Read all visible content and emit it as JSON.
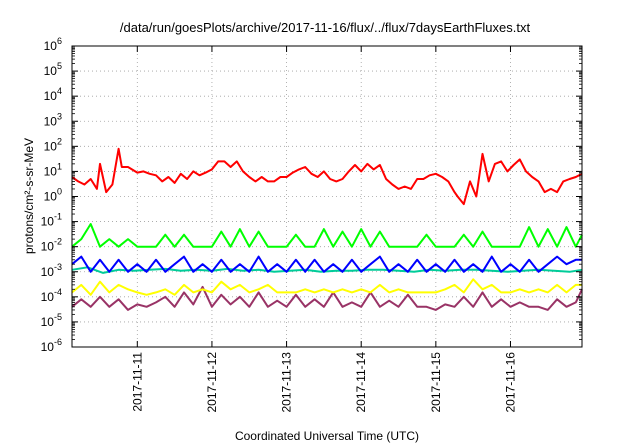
{
  "chart_data": {
    "type": "line",
    "title": "/data/run/goesPlots/archive/2017-11-16/flux/../flux/7daysEarthFluxes.txt",
    "xlabel": "Coordinated Universal Time (UTC)",
    "ylabel": "protons/cm²-s-sr-MeV",
    "y_scale": "log",
    "ylim_exp": [
      -6,
      6
    ],
    "y_ticks": [
      {
        "base": "10",
        "exp": "-6"
      },
      {
        "base": "10",
        "exp": "-5"
      },
      {
        "base": "10",
        "exp": "-4"
      },
      {
        "base": "10",
        "exp": "-3"
      },
      {
        "base": "10",
        "exp": "-2"
      },
      {
        "base": "10",
        "exp": "-1"
      },
      {
        "base": "10",
        "exp": "0"
      },
      {
        "base": "10",
        "exp": "1"
      },
      {
        "base": "10",
        "exp": "2"
      },
      {
        "base": "10",
        "exp": "3"
      },
      {
        "base": "10",
        "exp": "4"
      },
      {
        "base": "10",
        "exp": "5"
      },
      {
        "base": "10",
        "exp": "6"
      }
    ],
    "x_range": [
      "2017-11-10 03:00",
      "2017-11-16 23:00"
    ],
    "x_ticks": [
      "2017-11-11",
      "2017-11-12",
      "2017-11-13",
      "2017-11-14",
      "2017-11-15",
      "2017-11-16"
    ],
    "grid": true,
    "legend": "none",
    "series": [
      {
        "color": "#ff0000",
        "x": [
          "2017-11-10 03:00",
          "2017-11-10 05:00",
          "2017-11-10 07:00",
          "2017-11-10 09:00",
          "2017-11-10 11:00",
          "2017-11-10 12:00",
          "2017-11-10 14:00",
          "2017-11-10 16:00",
          "2017-11-10 18:00",
          "2017-11-10 19:00",
          "2017-11-10 21:00",
          "2017-11-11 00:00",
          "2017-11-11 02:00",
          "2017-11-11 04:00",
          "2017-11-11 06:00",
          "2017-11-11 08:00",
          "2017-11-11 10:00",
          "2017-11-11 12:00",
          "2017-11-11 14:00",
          "2017-11-11 16:00",
          "2017-11-11 18:00",
          "2017-11-11 20:00",
          "2017-11-11 22:00",
          "2017-11-12 00:00",
          "2017-11-12 02:00",
          "2017-11-12 04:00",
          "2017-11-12 06:00",
          "2017-11-12 08:00",
          "2017-11-12 10:00",
          "2017-11-12 12:00",
          "2017-11-12 14:00",
          "2017-11-12 16:00",
          "2017-11-12 18:00",
          "2017-11-12 20:00",
          "2017-11-12 22:00",
          "2017-11-13 00:00",
          "2017-11-13 02:00",
          "2017-11-13 04:00",
          "2017-11-13 06:00",
          "2017-11-13 08:00",
          "2017-11-13 10:00",
          "2017-11-13 12:00",
          "2017-11-13 14:00",
          "2017-11-13 16:00",
          "2017-11-13 18:00",
          "2017-11-13 20:00",
          "2017-11-13 22:00",
          "2017-11-14 00:00",
          "2017-11-14 02:00",
          "2017-11-14 04:00",
          "2017-11-14 06:00",
          "2017-11-14 08:00",
          "2017-11-14 10:00",
          "2017-11-14 12:00",
          "2017-11-14 14:00",
          "2017-11-14 16:00",
          "2017-11-14 18:00",
          "2017-11-14 20:00",
          "2017-11-14 22:00",
          "2017-11-15 00:00",
          "2017-11-15 02:00",
          "2017-11-15 04:00",
          "2017-11-15 06:00",
          "2017-11-15 07:00",
          "2017-11-15 09:00",
          "2017-11-15 11:00",
          "2017-11-15 13:00",
          "2017-11-15 15:00",
          "2017-11-15 17:00",
          "2017-11-15 19:00",
          "2017-11-15 21:00",
          "2017-11-15 23:00",
          "2017-11-16 01:00",
          "2017-11-16 03:00",
          "2017-11-16 05:00",
          "2017-11-16 07:00",
          "2017-11-16 09:00",
          "2017-11-16 11:00",
          "2017-11-16 13:00",
          "2017-11-16 15:00",
          "2017-11-16 17:00",
          "2017-11-16 19:00",
          "2017-11-16 21:00",
          "2017-11-16 23:00"
        ],
        "y": [
          6,
          4,
          3,
          5,
          2,
          20,
          1.5,
          3,
          80,
          15,
          15,
          9,
          10,
          8,
          7,
          4,
          6,
          3.5,
          8,
          5,
          10,
          7,
          9,
          12,
          25,
          25,
          15,
          25,
          10,
          6,
          4,
          6,
          4,
          4,
          6,
          6,
          9,
          12,
          15,
          8,
          6,
          10,
          5,
          4,
          5,
          10,
          18,
          10,
          20,
          12,
          18,
          5,
          3,
          2,
          2.5,
          2,
          5,
          5,
          7,
          8,
          6,
          4,
          1.5,
          1,
          0.5,
          4,
          1,
          50,
          4,
          20,
          25,
          10,
          18,
          30,
          10,
          6,
          4,
          1.5,
          2,
          1.5,
          4,
          5,
          6,
          8
        ]
      },
      {
        "color": "#00ff00",
        "x": [
          "2017-11-10 03:00",
          "2017-11-10 06:00",
          "2017-11-10 09:00",
          "2017-11-10 12:00",
          "2017-11-10 15:00",
          "2017-11-10 18:00",
          "2017-11-10 21:00",
          "2017-11-11 00:00",
          "2017-11-11 03:00",
          "2017-11-11 06:00",
          "2017-11-11 09:00",
          "2017-11-11 12:00",
          "2017-11-11 15:00",
          "2017-11-11 18:00",
          "2017-11-11 21:00",
          "2017-11-12 00:00",
          "2017-11-12 03:00",
          "2017-11-12 06:00",
          "2017-11-12 09:00",
          "2017-11-12 12:00",
          "2017-11-12 15:00",
          "2017-11-12 18:00",
          "2017-11-12 21:00",
          "2017-11-13 00:00",
          "2017-11-13 03:00",
          "2017-11-13 06:00",
          "2017-11-13 09:00",
          "2017-11-13 12:00",
          "2017-11-13 15:00",
          "2017-11-13 18:00",
          "2017-11-13 21:00",
          "2017-11-14 00:00",
          "2017-11-14 03:00",
          "2017-11-14 06:00",
          "2017-11-14 09:00",
          "2017-11-14 12:00",
          "2017-11-14 15:00",
          "2017-11-14 18:00",
          "2017-11-14 21:00",
          "2017-11-15 00:00",
          "2017-11-15 03:00",
          "2017-11-15 06:00",
          "2017-11-15 09:00",
          "2017-11-15 12:00",
          "2017-11-15 15:00",
          "2017-11-15 18:00",
          "2017-11-15 21:00",
          "2017-11-16 00:00",
          "2017-11-16 03:00",
          "2017-11-16 06:00",
          "2017-11-16 09:00",
          "2017-11-16 12:00",
          "2017-11-16 15:00",
          "2017-11-16 18:00",
          "2017-11-16 21:00",
          "2017-11-16 23:00"
        ],
        "y": [
          0.01,
          0.02,
          0.08,
          0.01,
          0.02,
          0.01,
          0.02,
          0.01,
          0.01,
          0.01,
          0.03,
          0.01,
          0.03,
          0.01,
          0.01,
          0.01,
          0.04,
          0.01,
          0.05,
          0.01,
          0.04,
          0.01,
          0.01,
          0.01,
          0.03,
          0.01,
          0.01,
          0.05,
          0.01,
          0.04,
          0.01,
          0.05,
          0.01,
          0.04,
          0.01,
          0.01,
          0.01,
          0.01,
          0.03,
          0.01,
          0.01,
          0.01,
          0.03,
          0.01,
          0.04,
          0.01,
          0.01,
          0.01,
          0.01,
          0.06,
          0.01,
          0.05,
          0.01,
          0.06,
          0.01,
          0.03
        ]
      },
      {
        "color": "#0000ff",
        "x": [
          "2017-11-10 03:00",
          "2017-11-10 06:00",
          "2017-11-10 09:00",
          "2017-11-10 12:00",
          "2017-11-10 15:00",
          "2017-11-10 18:00",
          "2017-11-10 21:00",
          "2017-11-11 00:00",
          "2017-11-11 03:00",
          "2017-11-11 06:00",
          "2017-11-11 09:00",
          "2017-11-11 12:00",
          "2017-11-11 15:00",
          "2017-11-11 18:00",
          "2017-11-11 21:00",
          "2017-11-12 00:00",
          "2017-11-12 03:00",
          "2017-11-12 06:00",
          "2017-11-12 09:00",
          "2017-11-12 12:00",
          "2017-11-12 15:00",
          "2017-11-12 18:00",
          "2017-11-12 21:00",
          "2017-11-13 00:00",
          "2017-11-13 03:00",
          "2017-11-13 06:00",
          "2017-11-13 09:00",
          "2017-11-13 12:00",
          "2017-11-13 15:00",
          "2017-11-13 18:00",
          "2017-11-13 21:00",
          "2017-11-14 00:00",
          "2017-11-14 03:00",
          "2017-11-14 06:00",
          "2017-11-14 09:00",
          "2017-11-14 12:00",
          "2017-11-14 15:00",
          "2017-11-14 18:00",
          "2017-11-14 21:00",
          "2017-11-15 00:00",
          "2017-11-15 03:00",
          "2017-11-15 06:00",
          "2017-11-15 09:00",
          "2017-11-15 12:00",
          "2017-11-15 15:00",
          "2017-11-15 18:00",
          "2017-11-15 21:00",
          "2017-11-16 00:00",
          "2017-11-16 03:00",
          "2017-11-16 06:00",
          "2017-11-16 09:00",
          "2017-11-16 12:00",
          "2017-11-16 15:00",
          "2017-11-16 18:00",
          "2017-11-16 21:00",
          "2017-11-16 23:00"
        ],
        "y": [
          0.002,
          0.004,
          0.001,
          0.003,
          0.001,
          0.003,
          0.001,
          0.002,
          0.001,
          0.003,
          0.001,
          0.002,
          0.004,
          0.001,
          0.002,
          0.001,
          0.003,
          0.001,
          0.002,
          0.001,
          0.004,
          0.001,
          0.002,
          0.001,
          0.003,
          0.001,
          0.003,
          0.001,
          0.002,
          0.001,
          0.003,
          0.001,
          0.002,
          0.004,
          0.001,
          0.002,
          0.001,
          0.003,
          0.001,
          0.002,
          0.001,
          0.003,
          0.001,
          0.002,
          0.001,
          0.004,
          0.001,
          0.002,
          0.001,
          0.003,
          0.001,
          0.002,
          0.004,
          0.002,
          0.003,
          0.003
        ]
      },
      {
        "color": "#00cc99",
        "x": [
          "2017-11-10 03:00",
          "2017-11-10 08:00",
          "2017-11-10 13:00",
          "2017-11-10 18:00",
          "2017-11-10 23:00",
          "2017-11-11 04:00",
          "2017-11-11 09:00",
          "2017-11-11 14:00",
          "2017-11-11 19:00",
          "2017-11-12 00:00",
          "2017-11-12 05:00",
          "2017-11-12 10:00",
          "2017-11-12 15:00",
          "2017-11-12 20:00",
          "2017-11-13 01:00",
          "2017-11-13 06:00",
          "2017-11-13 11:00",
          "2017-11-13 16:00",
          "2017-11-13 21:00",
          "2017-11-14 02:00",
          "2017-11-14 07:00",
          "2017-11-14 12:00",
          "2017-11-14 17:00",
          "2017-11-14 22:00",
          "2017-11-15 03:00",
          "2017-11-15 08:00",
          "2017-11-15 13:00",
          "2017-11-15 18:00",
          "2017-11-15 23:00",
          "2017-11-16 04:00",
          "2017-11-16 09:00",
          "2017-11-16 14:00",
          "2017-11-16 19:00",
          "2017-11-16 23:00"
        ],
        "y": [
          0.0012,
          0.0015,
          0.0009,
          0.0012,
          0.0011,
          0.0012,
          0.0013,
          0.0011,
          0.0012,
          0.0011,
          0.0013,
          0.0011,
          0.0012,
          0.001,
          0.0011,
          0.0012,
          0.001,
          0.0011,
          0.0011,
          0.0012,
          0.0012,
          0.0011,
          0.001,
          0.0012,
          0.0011,
          0.0012,
          0.0012,
          0.0011,
          0.001,
          0.0011,
          0.0012,
          0.0011,
          0.001,
          0.0012
        ]
      },
      {
        "color": "#ffff00",
        "x": [
          "2017-11-10 03:00",
          "2017-11-10 06:00",
          "2017-11-10 09:00",
          "2017-11-10 12:00",
          "2017-11-10 15:00",
          "2017-11-10 18:00",
          "2017-11-10 21:00",
          "2017-11-11 00:00",
          "2017-11-11 03:00",
          "2017-11-11 06:00",
          "2017-11-11 09:00",
          "2017-11-11 12:00",
          "2017-11-11 15:00",
          "2017-11-11 18:00",
          "2017-11-11 21:00",
          "2017-11-12 00:00",
          "2017-11-12 03:00",
          "2017-11-12 06:00",
          "2017-11-12 09:00",
          "2017-11-12 12:00",
          "2017-11-12 15:00",
          "2017-11-12 18:00",
          "2017-11-12 21:00",
          "2017-11-13 00:00",
          "2017-11-13 03:00",
          "2017-11-13 06:00",
          "2017-11-13 09:00",
          "2017-11-13 12:00",
          "2017-11-13 15:00",
          "2017-11-13 18:00",
          "2017-11-13 21:00",
          "2017-11-14 00:00",
          "2017-11-14 03:00",
          "2017-11-14 06:00",
          "2017-11-14 09:00",
          "2017-11-14 12:00",
          "2017-11-14 15:00",
          "2017-11-14 18:00",
          "2017-11-14 21:00",
          "2017-11-15 00:00",
          "2017-11-15 03:00",
          "2017-11-15 06:00",
          "2017-11-15 09:00",
          "2017-11-15 12:00",
          "2017-11-15 15:00",
          "2017-11-15 18:00",
          "2017-11-15 21:00",
          "2017-11-16 00:00",
          "2017-11-16 03:00",
          "2017-11-16 06:00",
          "2017-11-16 09:00",
          "2017-11-16 12:00",
          "2017-11-16 15:00",
          "2017-11-16 18:00",
          "2017-11-16 21:00",
          "2017-11-16 23:00"
        ],
        "y": [
          0.00015,
          0.0003,
          0.00012,
          0.0004,
          0.00015,
          0.0003,
          0.0002,
          0.00015,
          0.00012,
          0.00015,
          0.0002,
          0.00012,
          0.0003,
          0.00015,
          0.0002,
          0.00015,
          0.0004,
          0.0002,
          0.0003,
          0.00015,
          0.0002,
          0.0003,
          0.00015,
          0.00015,
          0.00015,
          0.0002,
          0.00015,
          0.0002,
          0.00015,
          0.0002,
          0.00015,
          0.0002,
          0.00015,
          0.0003,
          0.00015,
          0.0002,
          0.00015,
          0.00015,
          0.00015,
          0.00015,
          0.0002,
          0.0003,
          0.00015,
          0.0005,
          0.0002,
          0.0003,
          0.00015,
          0.00015,
          0.0002,
          0.00015,
          0.0002,
          0.00015,
          0.0003,
          0.00015,
          0.0003,
          0.0003
        ]
      },
      {
        "color": "#993366",
        "x": [
          "2017-11-10 03:00",
          "2017-11-10 06:00",
          "2017-11-10 09:00",
          "2017-11-10 12:00",
          "2017-11-10 15:00",
          "2017-11-10 18:00",
          "2017-11-10 21:00",
          "2017-11-11 00:00",
          "2017-11-11 03:00",
          "2017-11-11 06:00",
          "2017-11-11 09:00",
          "2017-11-11 12:00",
          "2017-11-11 15:00",
          "2017-11-11 18:00",
          "2017-11-11 21:00",
          "2017-11-12 00:00",
          "2017-11-12 03:00",
          "2017-11-12 06:00",
          "2017-11-12 09:00",
          "2017-11-12 12:00",
          "2017-11-12 15:00",
          "2017-11-12 18:00",
          "2017-11-12 21:00",
          "2017-11-13 00:00",
          "2017-11-13 03:00",
          "2017-11-13 06:00",
          "2017-11-13 09:00",
          "2017-11-13 12:00",
          "2017-11-13 15:00",
          "2017-11-13 18:00",
          "2017-11-13 21:00",
          "2017-11-14 00:00",
          "2017-11-14 03:00",
          "2017-11-14 06:00",
          "2017-11-14 09:00",
          "2017-11-14 12:00",
          "2017-11-14 15:00",
          "2017-11-14 18:00",
          "2017-11-14 21:00",
          "2017-11-15 00:00",
          "2017-11-15 03:00",
          "2017-11-15 06:00",
          "2017-11-15 09:00",
          "2017-11-15 12:00",
          "2017-11-15 15:00",
          "2017-11-15 18:00",
          "2017-11-15 21:00",
          "2017-11-16 00:00",
          "2017-11-16 03:00",
          "2017-11-16 06:00",
          "2017-11-16 09:00",
          "2017-11-16 12:00",
          "2017-11-16 15:00",
          "2017-11-16 18:00",
          "2017-11-16 21:00",
          "2017-11-16 23:00"
        ],
        "y": [
          4e-05,
          8e-05,
          4e-05,
          0.0001,
          4e-05,
          8e-05,
          3e-05,
          5e-05,
          4e-05,
          6e-05,
          0.0001,
          4e-05,
          0.00015,
          5e-05,
          0.00025,
          4e-05,
          0.00012,
          5e-05,
          0.0001,
          4e-05,
          0.00015,
          4e-05,
          7e-05,
          4e-05,
          0.00012,
          4e-05,
          8e-05,
          4e-05,
          0.00015,
          4e-05,
          6e-05,
          4e-05,
          0.00015,
          4e-05,
          7e-05,
          4e-05,
          0.00012,
          4e-05,
          4e-05,
          3e-05,
          5e-05,
          4e-05,
          0.0001,
          4e-05,
          0.00015,
          4e-05,
          8e-05,
          4e-05,
          6e-05,
          4e-05,
          4e-05,
          3e-05,
          8e-05,
          4e-05,
          6e-05,
          0.0002
        ]
      }
    ]
  }
}
